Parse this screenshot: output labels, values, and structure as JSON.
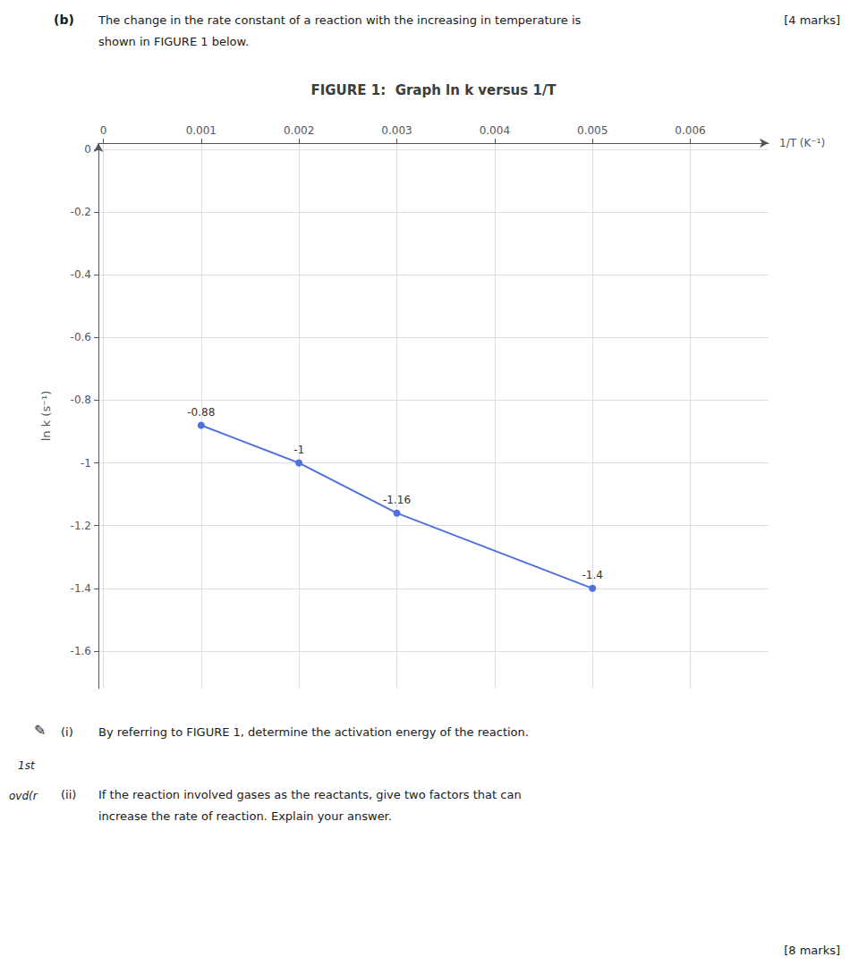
{
  "chart_data": {
    "type": "line",
    "title": "FIGURE 1:  Graph ln k versus 1/T",
    "xlabel": "1/T (K⁻¹)",
    "ylabel": "ln k (s⁻¹)",
    "x": [
      0.001,
      0.002,
      0.003,
      0.005
    ],
    "values": [
      -0.88,
      -1.0,
      -1.16,
      -1.4
    ],
    "xlim": [
      -5e-05,
      0.0068
    ],
    "xticks": [
      0.0,
      0.001,
      0.002,
      0.003,
      0.004,
      0.005,
      0.006
    ],
    "ylim": [
      -1.72,
      0.02
    ],
    "yticks": [
      0,
      -0.2,
      -0.4,
      -0.6,
      -0.8,
      -1.0,
      -1.2,
      -1.4,
      -1.6
    ],
    "grid": true,
    "data_labels": true,
    "annotations": [
      "(b)",
      "The change in the rate constant of a reaction with the increasing in temperature is",
      "[4 marks]",
      "shown in FIGURE 1 below.",
      "✎",
      "(i)",
      "By referring to FIGURE 1, determine the activation energy of the reaction.",
      "1st",
      "(ii)",
      "ovd(r",
      "If the reaction involved gases as the reactants, give two factors that can",
      "increase the rate of reaction. Explain your answer.",
      "[8 marks]"
    ]
  }
}
